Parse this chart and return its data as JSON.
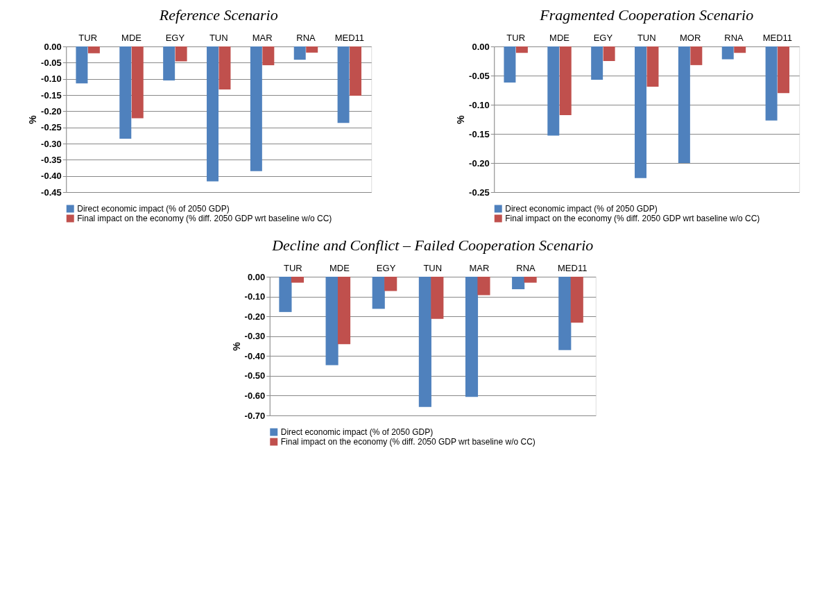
{
  "chart_data": [
    {
      "type": "bar",
      "title": "Reference Scenario",
      "ylabel": "%",
      "categories": [
        "TUR",
        "MDE",
        "EGY",
        "TUN",
        "MAR",
        "RNA",
        "MED11"
      ],
      "series": [
        {
          "name": "Direct economic impact (% of 2050 GDP)",
          "color": "#4f81bd",
          "values": [
            -0.114,
            -0.285,
            -0.105,
            -0.417,
            -0.385,
            -0.041,
            -0.236
          ]
        },
        {
          "name": "Final impact on the economy (% diff. 2050 GDP wrt baseline w/o CC)",
          "color": "#c0504d",
          "values": [
            -0.021,
            -0.222,
            -0.046,
            -0.133,
            -0.058,
            -0.019,
            -0.152
          ]
        }
      ],
      "ylim": [
        -0.45,
        0
      ],
      "yticks": [
        {
          "value": 0,
          "label": "0.00"
        },
        {
          "value": -0.05,
          "label": "-0.05"
        },
        {
          "value": -0.1,
          "label": "-0.10"
        },
        {
          "value": -0.15,
          "label": "-0.15"
        },
        {
          "value": -0.2,
          "label": "-0.20"
        },
        {
          "value": -0.25,
          "label": "-0.25"
        },
        {
          "value": -0.3,
          "label": "-0.30"
        },
        {
          "value": -0.35,
          "label": "-0.35"
        },
        {
          "value": -0.4,
          "label": "-0.40"
        },
        {
          "value": -0.45,
          "label": "-0.45"
        }
      ],
      "grid": "y",
      "legend": "bottom"
    },
    {
      "type": "bar",
      "title": "Fragmented Cooperation Scenario",
      "ylabel": "%",
      "categories": [
        "TUR",
        "MDE",
        "EGY",
        "TUN",
        "MOR",
        "RNA",
        "MED11"
      ],
      "series": [
        {
          "name": "Direct economic impact (% of 2050 GDP)",
          "color": "#4f81bd",
          "values": [
            -0.062,
            -0.153,
            -0.057,
            -0.226,
            -0.2,
            -0.022,
            -0.127
          ]
        },
        {
          "name": "Final impact on the economy (% diff. 2050 GDP wrt baseline w/o CC)",
          "color": "#c0504d",
          "values": [
            -0.011,
            -0.118,
            -0.025,
            -0.069,
            -0.032,
            -0.011,
            -0.08
          ]
        }
      ],
      "ylim": [
        -0.25,
        0
      ],
      "yticks": [
        {
          "value": 0,
          "label": "0.00"
        },
        {
          "value": -0.05,
          "label": "-0.05"
        },
        {
          "value": -0.1,
          "label": "-0.10"
        },
        {
          "value": -0.15,
          "label": "-0.15"
        },
        {
          "value": -0.2,
          "label": "-0.20"
        },
        {
          "value": -0.25,
          "label": "-0.25"
        }
      ],
      "grid": "y",
      "legend": "bottom"
    },
    {
      "type": "bar",
      "title": "Decline and Conflict – Failed Cooperation Scenario",
      "ylabel": "%",
      "categories": [
        "TUR",
        "MDE",
        "EGY",
        "TUN",
        "MAR",
        "RNA",
        "MED11"
      ],
      "series": [
        {
          "name": "Direct economic impact (% of 2050 GDP)",
          "color": "#4f81bd",
          "values": [
            -0.178,
            -0.446,
            -0.162,
            -0.657,
            -0.606,
            -0.063,
            -0.37
          ]
        },
        {
          "name": "Final impact on the economy (% diff. 2050 GDP wrt baseline w/o CC)",
          "color": "#c0504d",
          "values": [
            -0.03,
            -0.34,
            -0.072,
            -0.213,
            -0.093,
            -0.03,
            -0.232
          ]
        }
      ],
      "ylim": [
        -0.7,
        0
      ],
      "yticks": [
        {
          "value": 0,
          "label": "0.00"
        },
        {
          "value": -0.1,
          "label": "-0.10"
        },
        {
          "value": -0.2,
          "label": "-0.20"
        },
        {
          "value": -0.3,
          "label": "-0.30"
        },
        {
          "value": -0.4,
          "label": "-0.40"
        },
        {
          "value": -0.5,
          "label": "-0.50"
        },
        {
          "value": -0.6,
          "label": "-0.60"
        },
        {
          "value": -0.7,
          "label": "-0.70"
        }
      ],
      "grid": "y",
      "legend": "bottom"
    }
  ]
}
